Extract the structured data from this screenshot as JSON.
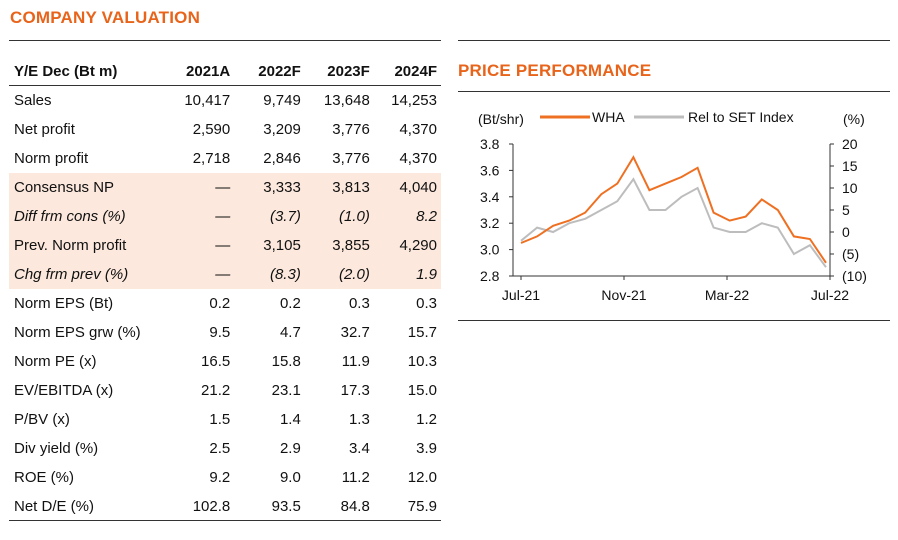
{
  "valuation": {
    "title": "COMPANY VALUATION",
    "headers": [
      "Y/E Dec (Bt m)",
      "2021A",
      "2022F",
      "2023F",
      "2024F"
    ],
    "rows": [
      {
        "label": "Sales",
        "values": [
          "10,417",
          "9,749",
          "13,648",
          "14,253"
        ],
        "shaded": false,
        "italic": false
      },
      {
        "label": "Net profit",
        "values": [
          "2,590",
          "3,209",
          "3,776",
          "4,370"
        ],
        "shaded": false,
        "italic": false
      },
      {
        "label": "Norm profit",
        "values": [
          "2,718",
          "2,846",
          "3,776",
          "4,370"
        ],
        "shaded": false,
        "italic": false
      },
      {
        "label": "Consensus NP",
        "values": [
          "—",
          "3,333",
          "3,813",
          "4,040"
        ],
        "shaded": true,
        "italic": false
      },
      {
        "label": "Diff frm cons (%)",
        "values": [
          "—",
          "(3.7)",
          "(1.0)",
          "8.2"
        ],
        "shaded": true,
        "italic": true
      },
      {
        "label": "Prev. Norm profit",
        "values": [
          "—",
          "3,105",
          "3,855",
          "4,290"
        ],
        "shaded": true,
        "italic": false
      },
      {
        "label": "Chg frm prev (%)",
        "values": [
          "—",
          "(8.3)",
          "(2.0)",
          "1.9"
        ],
        "shaded": true,
        "italic": true
      },
      {
        "label": "Norm EPS (Bt)",
        "values": [
          "0.2",
          "0.2",
          "0.3",
          "0.3"
        ],
        "shaded": false,
        "italic": false
      },
      {
        "label": "Norm EPS grw (%)",
        "values": [
          "9.5",
          "4.7",
          "32.7",
          "15.7"
        ],
        "shaded": false,
        "italic": false
      },
      {
        "label": "Norm PE (x)",
        "values": [
          "16.5",
          "15.8",
          "11.9",
          "10.3"
        ],
        "shaded": false,
        "italic": false
      },
      {
        "label": "EV/EBITDA (x)",
        "values": [
          "21.2",
          "23.1",
          "17.3",
          "15.0"
        ],
        "shaded": false,
        "italic": false
      },
      {
        "label": "P/BV (x)",
        "values": [
          "1.5",
          "1.4",
          "1.3",
          "1.2"
        ],
        "shaded": false,
        "italic": false
      },
      {
        "label": "Div yield (%)",
        "values": [
          "2.5",
          "2.9",
          "3.4",
          "3.9"
        ],
        "shaded": false,
        "italic": false
      },
      {
        "label": "ROE (%)",
        "values": [
          "9.2",
          "9.0",
          "11.2",
          "12.0"
        ],
        "shaded": false,
        "italic": false
      },
      {
        "label": "Net D/E (%)",
        "values": [
          "102.8",
          "93.5",
          "84.8",
          "75.9"
        ],
        "shaded": false,
        "italic": false
      }
    ]
  },
  "price_performance": {
    "title": "PRICE PERFORMANCE"
  },
  "chart_data": {
    "type": "line",
    "title": "",
    "left_axis_label": "(Bt/shr)",
    "right_axis_label": "(%)",
    "x_tick_labels": [
      "Jul-21",
      "Nov-21",
      "Mar-22",
      "Jul-22"
    ],
    "y_left_ticks": [
      "2.8",
      "3.0",
      "3.2",
      "3.4",
      "3.6",
      "3.8"
    ],
    "y_left_range": [
      2.8,
      3.8
    ],
    "y_right_ticks": [
      "(10)",
      "(5)",
      "0",
      "5",
      "10",
      "15",
      "20"
    ],
    "y_right_range": [
      -10,
      20
    ],
    "grid": false,
    "legend_position": "top",
    "colors": {
      "WHA": "#ee7022",
      "Rel to SET Index": "#bdbdbd"
    },
    "x_dates": [
      "Jul-21",
      "Aug-21",
      "Aug-21",
      "Sep-21",
      "Oct-21",
      "Oct-21",
      "Nov-21",
      "Nov-21",
      "Dec-21",
      "Jan-22",
      "Jan-22",
      "Feb-22",
      "Mar-22",
      "Mar-22",
      "Apr-22",
      "May-22",
      "May-22",
      "Jun-22",
      "Jun-22",
      "Jul-22"
    ],
    "series": [
      {
        "name": "WHA",
        "axis": "left",
        "values": [
          3.05,
          3.1,
          3.18,
          3.22,
          3.28,
          3.42,
          3.5,
          3.7,
          3.45,
          3.5,
          3.55,
          3.62,
          3.28,
          3.22,
          3.25,
          3.38,
          3.3,
          3.1,
          3.08,
          2.9
        ]
      },
      {
        "name": "Rel to SET Index",
        "axis": "right",
        "values": [
          -2,
          1,
          0,
          2,
          3,
          5,
          7,
          12,
          5,
          5,
          8,
          10,
          1,
          0,
          0,
          2,
          1,
          -5,
          -3,
          -8
        ]
      }
    ]
  }
}
